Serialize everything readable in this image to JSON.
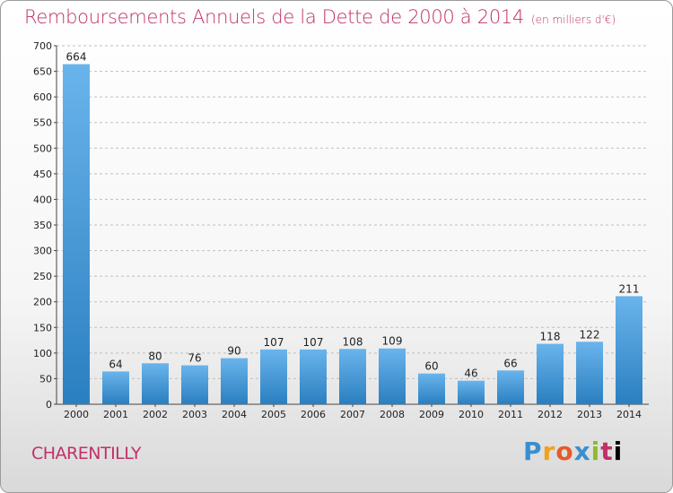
{
  "title": "Remboursements Annuels de la Dette de 2000 à 2014",
  "subtitle": "(en milliers d'€)",
  "commune": "CHARENTILLY",
  "logo": [
    "P",
    "r",
    "o",
    "x",
    "i",
    "t",
    "i"
  ],
  "colors": {
    "title": "#c0306a",
    "bar_light": "#6ab4ec",
    "bar_dark": "#2a7fc0",
    "grid": "#bfbfbf"
  },
  "chart_data": {
    "type": "bar",
    "categories": [
      "2000",
      "2001",
      "2002",
      "2003",
      "2004",
      "2005",
      "2006",
      "2007",
      "2008",
      "2009",
      "2010",
      "2011",
      "2012",
      "2013",
      "2014"
    ],
    "values": [
      664,
      64,
      80,
      76,
      90,
      107,
      107,
      108,
      109,
      60,
      46,
      66,
      118,
      122,
      211
    ],
    "title": "Remboursements Annuels de la Dette de 2000 à 2014",
    "subtitle": "(en milliers d'€)",
    "xlabel": "",
    "ylabel": "",
    "ylim": [
      0,
      700
    ],
    "yticks": [
      0,
      50,
      100,
      150,
      200,
      250,
      300,
      350,
      400,
      450,
      500,
      550,
      600,
      650,
      700
    ],
    "grid": "horizontal dashed",
    "legend": "none"
  }
}
